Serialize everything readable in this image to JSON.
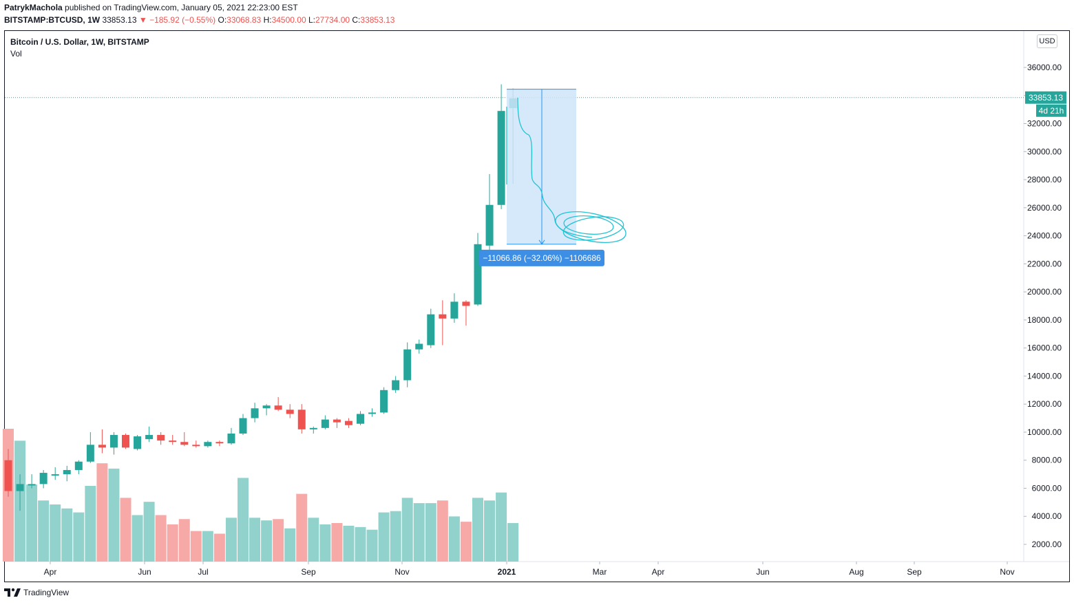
{
  "publish": {
    "author": "PatrykMachola",
    "text": "published on TradingView.com, January 05, 2021 22:23:00 EST"
  },
  "quote": {
    "symbol": "BITSTAMP:BTCUSD, 1W",
    "last": "33853.13",
    "change": "▼ −185.92 (−0.55%)",
    "o_label": "O:",
    "o": "33068.83",
    "h_label": "H:",
    "h": "34500.00",
    "l_label": "L:",
    "l": "27734.00",
    "c_label": "C:",
    "c": "33853.13"
  },
  "legend": {
    "title": "Bitcoin / U.S. Dollar, 1W, BITSTAMP",
    "vol": "Vol"
  },
  "currency_button": "USD",
  "footer": {
    "brand": "TradingView"
  },
  "colors": {
    "up": "#26a69a",
    "down": "#ef5350",
    "vol_up": "#92d2cc",
    "vol_down": "#f7a9a7",
    "price_line": "#26a69a",
    "projection_fill": "#cfe5fa",
    "projection_stroke": "#2196f3",
    "projection_label_bg": "#3d8fe6",
    "drawing": "#22c3d3"
  },
  "chart_data": {
    "type": "candlestick",
    "title": "Bitcoin / U.S. Dollar, 1W, BITSTAMP",
    "ylim": [
      1000,
      37000
    ],
    "y_ticks": [
      "36000.00",
      "34000.00",
      "32000.00",
      "30000.00",
      "28000.00",
      "26000.00",
      "24000.00",
      "22000.00",
      "20000.00",
      "18000.00",
      "16000.00",
      "14000.00",
      "12000.00",
      "10000.00",
      "8000.00",
      "6000.00",
      "4000.00",
      "2000.00"
    ],
    "x_ticks": [
      "Apr",
      "Jun",
      "Jul",
      "Sep",
      "Nov",
      "2021",
      "Mar",
      "Apr",
      "Jun",
      "Aug",
      "Sep",
      "Nov"
    ],
    "candles": [
      {
        "o": 8000,
        "h": 8800,
        "l": 5400,
        "c": 5800
      },
      {
        "o": 5800,
        "h": 7000,
        "l": 4400,
        "c": 6300
      },
      {
        "o": 6200,
        "h": 7000,
        "l": 6000,
        "c": 6300
      },
      {
        "o": 6300,
        "h": 7300,
        "l": 6000,
        "c": 7100
      },
      {
        "o": 6900,
        "h": 7500,
        "l": 6600,
        "c": 7000
      },
      {
        "o": 7000,
        "h": 7600,
        "l": 6500,
        "c": 7300
      },
      {
        "o": 7300,
        "h": 8000,
        "l": 7000,
        "c": 7900
      },
      {
        "o": 7900,
        "h": 10000,
        "l": 7800,
        "c": 9100
      },
      {
        "o": 9100,
        "h": 10200,
        "l": 8500,
        "c": 8900
      },
      {
        "o": 8900,
        "h": 10000,
        "l": 8400,
        "c": 9800
      },
      {
        "o": 9800,
        "h": 9900,
        "l": 8800,
        "c": 8900
      },
      {
        "o": 8800,
        "h": 9800,
        "l": 8700,
        "c": 9700
      },
      {
        "o": 9500,
        "h": 10400,
        "l": 9300,
        "c": 9800
      },
      {
        "o": 9800,
        "h": 10000,
        "l": 9100,
        "c": 9400
      },
      {
        "o": 9400,
        "h": 9800,
        "l": 9100,
        "c": 9300
      },
      {
        "o": 9300,
        "h": 10000,
        "l": 9000,
        "c": 9100
      },
      {
        "o": 9100,
        "h": 9400,
        "l": 8900,
        "c": 9000
      },
      {
        "o": 9000,
        "h": 9400,
        "l": 8900,
        "c": 9300
      },
      {
        "o": 9300,
        "h": 9400,
        "l": 9000,
        "c": 9200
      },
      {
        "o": 9200,
        "h": 10300,
        "l": 9100,
        "c": 9900
      },
      {
        "o": 9900,
        "h": 11300,
        "l": 9800,
        "c": 11000
      },
      {
        "o": 11000,
        "h": 12100,
        "l": 10700,
        "c": 11700
      },
      {
        "o": 11700,
        "h": 12000,
        "l": 11200,
        "c": 11900
      },
      {
        "o": 11900,
        "h": 12500,
        "l": 11500,
        "c": 11600
      },
      {
        "o": 11600,
        "h": 12000,
        "l": 11000,
        "c": 11300
      },
      {
        "o": 11600,
        "h": 12000,
        "l": 9900,
        "c": 10200
      },
      {
        "o": 10200,
        "h": 10400,
        "l": 9900,
        "c": 10300
      },
      {
        "o": 10300,
        "h": 11200,
        "l": 10200,
        "c": 10900
      },
      {
        "o": 10900,
        "h": 11000,
        "l": 10300,
        "c": 10700
      },
      {
        "o": 10800,
        "h": 11000,
        "l": 10300,
        "c": 10500
      },
      {
        "o": 10600,
        "h": 11500,
        "l": 10500,
        "c": 11300
      },
      {
        "o": 11300,
        "h": 11700,
        "l": 11100,
        "c": 11400
      },
      {
        "o": 11400,
        "h": 13200,
        "l": 11300,
        "c": 13000
      },
      {
        "o": 13000,
        "h": 14000,
        "l": 12800,
        "c": 13700
      },
      {
        "o": 13700,
        "h": 16400,
        "l": 13200,
        "c": 15900
      },
      {
        "o": 15900,
        "h": 16600,
        "l": 15600,
        "c": 16300
      },
      {
        "o": 16200,
        "h": 18800,
        "l": 16000,
        "c": 18400
      },
      {
        "o": 18400,
        "h": 19400,
        "l": 16200,
        "c": 18100
      },
      {
        "o": 18100,
        "h": 19900,
        "l": 17800,
        "c": 19300
      },
      {
        "o": 19300,
        "h": 19400,
        "l": 17600,
        "c": 19000
      },
      {
        "o": 19100,
        "h": 24200,
        "l": 19000,
        "c": 23400
      },
      {
        "o": 23300,
        "h": 28400,
        "l": 22400,
        "c": 26200
      },
      {
        "o": 26200,
        "h": 34800,
        "l": 25900,
        "c": 32900
      },
      {
        "o": 33100,
        "h": 34500,
        "l": 27700,
        "c": 33800
      }
    ],
    "volume": [
      {
        "v": 10000,
        "dir": "down"
      },
      {
        "v": 9100,
        "dir": "up"
      },
      {
        "v": 5800,
        "dir": "up"
      },
      {
        "v": 4600,
        "dir": "up"
      },
      {
        "v": 4300,
        "dir": "up"
      },
      {
        "v": 4000,
        "dir": "up"
      },
      {
        "v": 3700,
        "dir": "up"
      },
      {
        "v": 5700,
        "dir": "up"
      },
      {
        "v": 7400,
        "dir": "down"
      },
      {
        "v": 7000,
        "dir": "up"
      },
      {
        "v": 4800,
        "dir": "down"
      },
      {
        "v": 3500,
        "dir": "up"
      },
      {
        "v": 4500,
        "dir": "up"
      },
      {
        "v": 3500,
        "dir": "down"
      },
      {
        "v": 2800,
        "dir": "down"
      },
      {
        "v": 3200,
        "dir": "down"
      },
      {
        "v": 2300,
        "dir": "down"
      },
      {
        "v": 2300,
        "dir": "up"
      },
      {
        "v": 2100,
        "dir": "down"
      },
      {
        "v": 3300,
        "dir": "up"
      },
      {
        "v": 6300,
        "dir": "up"
      },
      {
        "v": 3300,
        "dir": "up"
      },
      {
        "v": 3100,
        "dir": "up"
      },
      {
        "v": 3200,
        "dir": "down"
      },
      {
        "v": 2500,
        "dir": "up"
      },
      {
        "v": 5100,
        "dir": "down"
      },
      {
        "v": 3300,
        "dir": "up"
      },
      {
        "v": 2800,
        "dir": "up"
      },
      {
        "v": 2900,
        "dir": "down"
      },
      {
        "v": 2700,
        "dir": "up"
      },
      {
        "v": 2600,
        "dir": "up"
      },
      {
        "v": 2400,
        "dir": "up"
      },
      {
        "v": 3700,
        "dir": "up"
      },
      {
        "v": 3800,
        "dir": "up"
      },
      {
        "v": 4800,
        "dir": "up"
      },
      {
        "v": 4400,
        "dir": "up"
      },
      {
        "v": 4400,
        "dir": "up"
      },
      {
        "v": 4600,
        "dir": "down"
      },
      {
        "v": 3400,
        "dir": "up"
      },
      {
        "v": 3000,
        "dir": "down"
      },
      {
        "v": 4800,
        "dir": "up"
      },
      {
        "v": 4600,
        "dir": "up"
      },
      {
        "v": 5200,
        "dir": "up"
      },
      {
        "v": 2900,
        "dir": "up"
      }
    ],
    "last_price": "33853.13",
    "countdown": "4d 21h",
    "projection": {
      "top": 34450,
      "bottom": 23400,
      "label": "−11066.86 (−32.06%) −1106686"
    }
  }
}
